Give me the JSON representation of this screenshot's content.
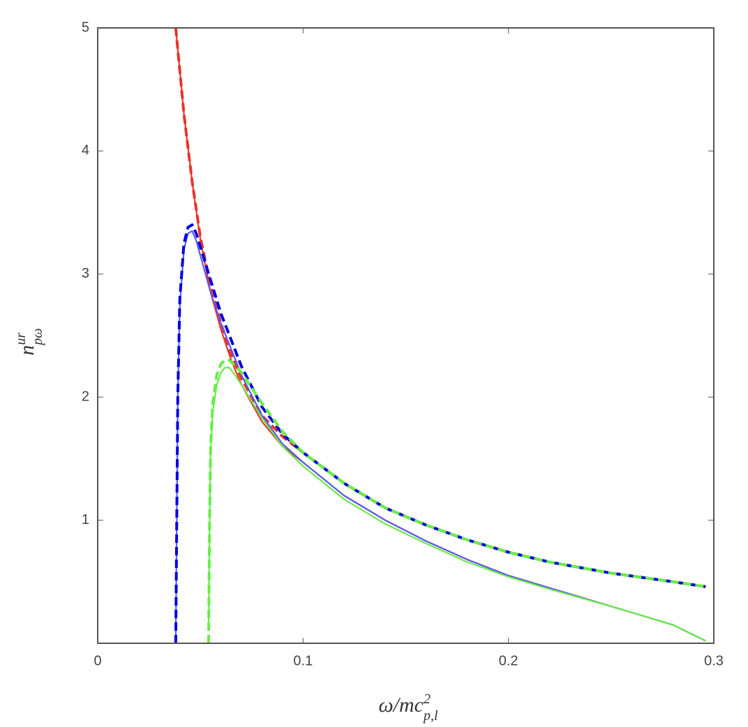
{
  "chart_data": {
    "type": "line",
    "x_label": {
      "base": "ω/mc",
      "sup": "2",
      "sub": "p,l"
    },
    "y_label": {
      "base": "n",
      "sup": "ur",
      "sub": "pω"
    },
    "xlim": [
      0,
      0.3
    ],
    "ylim": [
      0,
      5
    ],
    "xticks": [
      0,
      0.1,
      0.2,
      0.3
    ],
    "yticks": [
      1,
      2,
      3,
      4,
      5
    ],
    "grid": false,
    "series": [
      {
        "color": "#e8352b",
        "dash": true,
        "x": [
          0.038,
          0.042,
          0.046,
          0.05,
          0.055,
          0.06,
          0.065,
          0.07,
          0.08,
          0.09,
          0.1,
          0.12,
          0.14,
          0.16,
          0.18,
          0.2,
          0.22,
          0.25,
          0.28,
          0.296
        ],
        "values": [
          5.0,
          4.3,
          3.75,
          3.3,
          2.9,
          2.6,
          2.35,
          2.15,
          1.85,
          1.68,
          1.55,
          1.3,
          1.1,
          0.96,
          0.84,
          0.74,
          0.66,
          0.57,
          0.5,
          0.46
        ]
      },
      {
        "color": "#e8352b",
        "dash": false,
        "x": [
          0.038,
          0.042,
          0.046,
          0.05,
          0.055,
          0.06,
          0.065,
          0.07,
          0.08,
          0.09,
          0.1,
          0.12,
          0.14,
          0.16,
          0.18,
          0.2,
          0.22,
          0.25,
          0.28,
          0.296
        ],
        "values": [
          5.0,
          4.3,
          3.75,
          3.28,
          2.85,
          2.55,
          2.3,
          2.1,
          1.8,
          1.6,
          1.47,
          1.2,
          1.0,
          0.83,
          0.68,
          0.55,
          0.45,
          0.3,
          0.15,
          0.02
        ]
      },
      {
        "color": "#5a5af0",
        "dash": false,
        "x": [
          0.038,
          0.0385,
          0.039,
          0.04,
          0.042,
          0.044,
          0.046,
          0.048,
          0.05,
          0.055,
          0.06,
          0.07,
          0.08,
          0.09,
          0.1,
          0.12,
          0.14,
          0.16,
          0.18,
          0.2,
          0.22,
          0.25,
          0.28,
          0.296
        ],
        "values": [
          0,
          1,
          2.0,
          2.75,
          3.2,
          3.33,
          3.35,
          3.27,
          3.15,
          2.85,
          2.6,
          2.18,
          1.85,
          1.62,
          1.47,
          1.2,
          1.0,
          0.83,
          0.68,
          0.55,
          0.45,
          0.3,
          0.15,
          0.02
        ]
      },
      {
        "color": "#0000e0",
        "dash": true,
        "x": [
          0.038,
          0.0385,
          0.039,
          0.04,
          0.042,
          0.044,
          0.046,
          0.048,
          0.05,
          0.055,
          0.06,
          0.07,
          0.08,
          0.09,
          0.1,
          0.12,
          0.14,
          0.16,
          0.18,
          0.2,
          0.22,
          0.25,
          0.28,
          0.296
        ],
        "values": [
          0,
          1,
          2.0,
          2.8,
          3.25,
          3.38,
          3.4,
          3.33,
          3.22,
          2.95,
          2.68,
          2.25,
          1.92,
          1.7,
          1.55,
          1.3,
          1.1,
          0.96,
          0.84,
          0.74,
          0.66,
          0.57,
          0.5,
          0.46
        ]
      },
      {
        "color": "#66ee44",
        "dash": false,
        "x": [
          0.054,
          0.0545,
          0.055,
          0.056,
          0.058,
          0.06,
          0.062,
          0.064,
          0.066,
          0.07,
          0.08,
          0.09,
          0.1,
          0.12,
          0.14,
          0.16,
          0.18,
          0.2,
          0.22,
          0.25,
          0.28,
          0.296
        ],
        "values": [
          0.1,
          1,
          1.55,
          1.88,
          2.1,
          2.2,
          2.24,
          2.24,
          2.2,
          2.1,
          1.83,
          1.6,
          1.44,
          1.17,
          0.97,
          0.81,
          0.66,
          0.54,
          0.44,
          0.3,
          0.15,
          0.02
        ]
      },
      {
        "color": "#66ee44",
        "dash": true,
        "x": [
          0.054,
          0.0545,
          0.055,
          0.056,
          0.058,
          0.06,
          0.062,
          0.064,
          0.066,
          0.07,
          0.08,
          0.09,
          0.1,
          0.12,
          0.14,
          0.16,
          0.18,
          0.2,
          0.22,
          0.25,
          0.28,
          0.296
        ],
        "values": [
          0,
          1,
          1.6,
          1.95,
          2.18,
          2.27,
          2.3,
          2.3,
          2.27,
          2.2,
          1.95,
          1.72,
          1.55,
          1.3,
          1.1,
          0.96,
          0.84,
          0.74,
          0.66,
          0.57,
          0.5,
          0.46
        ]
      }
    ]
  }
}
